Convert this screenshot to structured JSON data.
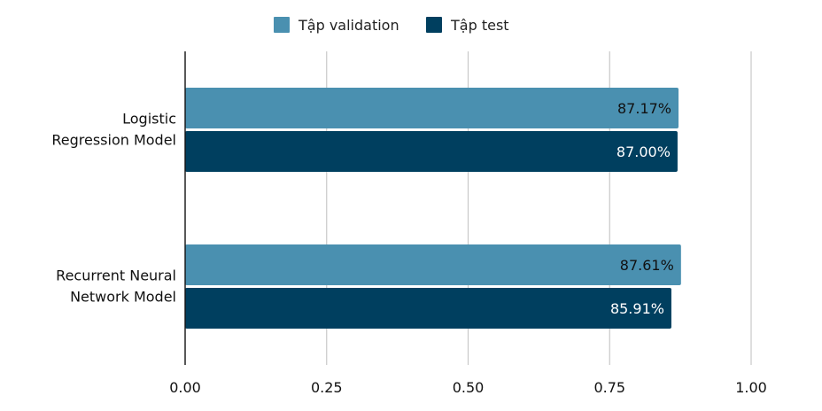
{
  "chart_data": {
    "type": "bar",
    "orientation": "horizontal",
    "categories": [
      [
        "Logistic",
        "Regression Model"
      ],
      [
        "Recurrent Neural",
        "Network Model"
      ]
    ],
    "series": [
      {
        "name": "Tập validation",
        "values": [
          0.8717,
          0.8761
        ],
        "labels": [
          "87.17%",
          "87.61%"
        ],
        "color": "#4a90b0",
        "label_color": "#111111"
      },
      {
        "name": "Tập test",
        "values": [
          0.87,
          0.8591
        ],
        "labels": [
          "87.00%",
          "85.91%"
        ],
        "color": "#003f5f",
        "label_color": "#ffffff"
      }
    ],
    "xlim": [
      0,
      1
    ],
    "xticks": [
      "0.00",
      "0.25",
      "0.50",
      "0.75",
      "1.00"
    ],
    "grid": true,
    "legend_position": "top-center"
  }
}
